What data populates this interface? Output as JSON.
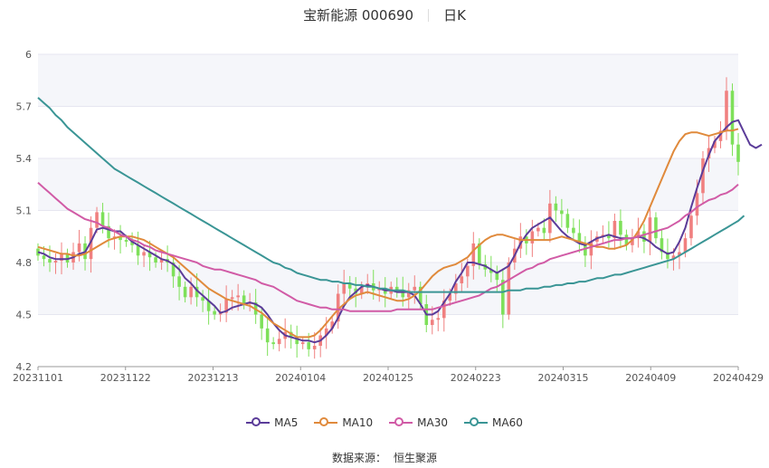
{
  "title": "宝新能源 000690",
  "period": "日K",
  "source_label": "数据来源：",
  "source_name": "恒生聚源",
  "colors": {
    "up": "#f08080",
    "down": "#7ee05a",
    "ma5": "#5b3c99",
    "ma10": "#e08a3c",
    "ma30": "#d15ba6",
    "ma60": "#3a9595",
    "grid": "#e6e6f0",
    "band": "#f5f6fa"
  },
  "chart_data": {
    "type": "candlestick",
    "ylim": [
      4.2,
      6.0
    ],
    "yticks": [
      "6",
      "5.7",
      "5.4",
      "5.1",
      "4.8",
      "4.5",
      "4.2"
    ],
    "xticks": [
      "20231101",
      "20231122",
      "20231213",
      "20240104",
      "20240125",
      "20240223",
      "20240315",
      "20240409",
      "20240429"
    ],
    "n_bars": 120,
    "close": [
      4.84,
      4.82,
      4.8,
      4.81,
      4.85,
      4.8,
      4.86,
      4.91,
      4.82,
      5.0,
      5.09,
      5.01,
      4.94,
      4.95,
      4.93,
      4.92,
      4.9,
      4.84,
      4.86,
      4.83,
      4.8,
      4.82,
      4.8,
      4.72,
      4.66,
      4.6,
      4.66,
      4.6,
      4.58,
      4.52,
      4.5,
      4.51,
      4.59,
      4.6,
      4.61,
      4.56,
      4.57,
      4.5,
      4.42,
      4.34,
      4.33,
      4.36,
      4.4,
      4.37,
      4.33,
      4.34,
      4.3,
      4.32,
      4.38,
      4.42,
      4.46,
      4.62,
      4.68,
      4.65,
      4.62,
      4.66,
      4.68,
      4.64,
      4.65,
      4.62,
      4.66,
      4.64,
      4.6,
      4.64,
      4.66,
      4.56,
      4.44,
      4.47,
      4.48,
      4.58,
      4.62,
      4.68,
      4.72,
      4.78,
      4.91,
      4.79,
      4.76,
      4.74,
      4.7,
      4.5,
      4.8,
      4.88,
      4.95,
      4.91,
      4.98,
      5.0,
      4.97,
      5.14,
      5.1,
      5.08,
      5.0,
      4.97,
      4.91,
      4.84,
      4.92,
      4.95,
      4.96,
      4.94,
      5.04,
      4.96,
      4.9,
      4.94,
      4.98,
      4.92,
      5.06,
      4.94,
      4.86,
      4.82,
      4.84,
      4.86,
      4.94,
      5.07,
      5.2,
      5.4,
      5.46,
      5.5,
      5.56,
      5.79,
      5.48,
      5.38,
      5.47,
      5.43,
      5.48,
      5.52,
      5.67
    ],
    "ma5": [
      4.86,
      4.85,
      4.83,
      4.82,
      4.82,
      4.82,
      4.83,
      4.85,
      4.86,
      4.92,
      4.99,
      5.0,
      4.99,
      4.98,
      4.98,
      4.95,
      4.92,
      4.9,
      4.88,
      4.86,
      4.84,
      4.82,
      4.81,
      4.79,
      4.76,
      4.71,
      4.68,
      4.64,
      4.61,
      4.58,
      4.55,
      4.51,
      4.52,
      4.54,
      4.55,
      4.56,
      4.57,
      4.56,
      4.54,
      4.5,
      4.45,
      4.41,
      4.38,
      4.37,
      4.36,
      4.35,
      4.35,
      4.34,
      4.35,
      4.38,
      4.42,
      4.48,
      4.55,
      4.6,
      4.63,
      4.66,
      4.67,
      4.66,
      4.65,
      4.64,
      4.64,
      4.63,
      4.63,
      4.63,
      4.61,
      4.56,
      4.5,
      4.5,
      4.52,
      4.57,
      4.62,
      4.69,
      4.74,
      4.8,
      4.8,
      4.79,
      4.78,
      4.76,
      4.74,
      4.76,
      4.78,
      4.84,
      4.91,
      4.96,
      5.0,
      5.02,
      5.04,
      5.06,
      5.02,
      4.98,
      4.95,
      4.93,
      4.91,
      4.9,
      4.92,
      4.94,
      4.95,
      4.96,
      4.95,
      4.94,
      4.94,
      4.94,
      4.95,
      4.94,
      4.92,
      4.89,
      4.87,
      4.85,
      4.86,
      4.92,
      5.0,
      5.12,
      5.23,
      5.33,
      5.42,
      5.5,
      5.54,
      5.58,
      5.61,
      5.62,
      5.55,
      5.48,
      5.46,
      5.48
    ],
    "ma10": [
      4.89,
      4.88,
      4.87,
      4.86,
      4.85,
      4.85,
      4.84,
      4.84,
      4.85,
      4.87,
      4.89,
      4.91,
      4.93,
      4.94,
      4.95,
      4.95,
      4.95,
      4.94,
      4.93,
      4.91,
      4.89,
      4.87,
      4.85,
      4.83,
      4.8,
      4.77,
      4.74,
      4.71,
      4.68,
      4.65,
      4.63,
      4.61,
      4.59,
      4.58,
      4.57,
      4.56,
      4.55,
      4.53,
      4.51,
      4.48,
      4.45,
      4.43,
      4.41,
      4.39,
      4.37,
      4.37,
      4.37,
      4.38,
      4.41,
      4.45,
      4.49,
      4.53,
      4.56,
      4.59,
      4.61,
      4.62,
      4.63,
      4.62,
      4.61,
      4.6,
      4.59,
      4.58,
      4.58,
      4.59,
      4.61,
      4.64,
      4.68,
      4.72,
      4.75,
      4.77,
      4.78,
      4.79,
      4.81,
      4.83,
      4.87,
      4.9,
      4.93,
      4.95,
      4.96,
      4.96,
      4.95,
      4.94,
      4.93,
      4.93,
      4.93,
      4.93,
      4.93,
      4.93,
      4.94,
      4.95,
      4.94,
      4.93,
      4.92,
      4.91,
      4.9,
      4.89,
      4.89,
      4.88,
      4.88,
      4.89,
      4.9,
      4.93,
      4.98,
      5.04,
      5.12,
      5.2,
      5.28,
      5.36,
      5.44,
      5.5,
      5.54,
      5.55,
      5.55,
      5.54,
      5.53,
      5.54,
      5.55,
      5.56,
      5.56,
      5.57
    ],
    "ma30": [
      5.26,
      5.23,
      5.2,
      5.17,
      5.14,
      5.11,
      5.09,
      5.07,
      5.05,
      5.04,
      5.03,
      5.01,
      5.0,
      4.98,
      4.96,
      4.95,
      4.93,
      4.92,
      4.9,
      4.89,
      4.87,
      4.86,
      4.85,
      4.84,
      4.83,
      4.82,
      4.81,
      4.8,
      4.78,
      4.77,
      4.76,
      4.76,
      4.75,
      4.74,
      4.73,
      4.72,
      4.71,
      4.7,
      4.68,
      4.67,
      4.66,
      4.64,
      4.62,
      4.6,
      4.58,
      4.57,
      4.56,
      4.55,
      4.54,
      4.54,
      4.53,
      4.53,
      4.53,
      4.52,
      4.52,
      4.52,
      4.52,
      4.52,
      4.52,
      4.52,
      4.52,
      4.53,
      4.53,
      4.53,
      4.53,
      4.53,
      4.53,
      4.53,
      4.54,
      4.55,
      4.56,
      4.57,
      4.58,
      4.59,
      4.6,
      4.61,
      4.63,
      4.65,
      4.66,
      4.68,
      4.7,
      4.72,
      4.74,
      4.76,
      4.77,
      4.79,
      4.8,
      4.82,
      4.83,
      4.84,
      4.85,
      4.86,
      4.87,
      4.88,
      4.89,
      4.9,
      4.91,
      4.92,
      4.93,
      4.93,
      4.94,
      4.94,
      4.95,
      4.96,
      4.97,
      4.98,
      4.99,
      5.0,
      5.02,
      5.04,
      5.07,
      5.09,
      5.12,
      5.14,
      5.16,
      5.17,
      5.19,
      5.2,
      5.22,
      5.25
    ],
    "ma60": [
      5.75,
      5.72,
      5.69,
      5.65,
      5.62,
      5.58,
      5.55,
      5.52,
      5.49,
      5.46,
      5.43,
      5.4,
      5.37,
      5.34,
      5.32,
      5.3,
      5.28,
      5.26,
      5.24,
      5.22,
      5.2,
      5.18,
      5.16,
      5.14,
      5.12,
      5.1,
      5.08,
      5.06,
      5.04,
      5.02,
      5.0,
      4.98,
      4.96,
      4.94,
      4.92,
      4.9,
      4.88,
      4.86,
      4.84,
      4.82,
      4.8,
      4.79,
      4.77,
      4.76,
      4.74,
      4.73,
      4.72,
      4.71,
      4.7,
      4.7,
      4.69,
      4.69,
      4.68,
      4.68,
      4.67,
      4.67,
      4.66,
      4.66,
      4.65,
      4.65,
      4.64,
      4.64,
      4.64,
      4.63,
      4.63,
      4.63,
      4.63,
      4.63,
      4.63,
      4.63,
      4.63,
      4.63,
      4.63,
      4.63,
      4.63,
      4.63,
      4.63,
      4.63,
      4.63,
      4.63,
      4.64,
      4.64,
      4.64,
      4.65,
      4.65,
      4.65,
      4.66,
      4.66,
      4.67,
      4.67,
      4.68,
      4.68,
      4.69,
      4.69,
      4.7,
      4.71,
      4.71,
      4.72,
      4.73,
      4.73,
      4.74,
      4.75,
      4.76,
      4.77,
      4.78,
      4.79,
      4.8,
      4.81,
      4.82,
      4.84,
      4.86,
      4.88,
      4.9,
      4.92,
      4.94,
      4.96,
      4.98,
      5.0,
      5.02,
      5.04,
      5.07
    ],
    "legend": [
      {
        "name": "MA5",
        "key": "ma5"
      },
      {
        "name": "MA10",
        "key": "ma10"
      },
      {
        "name": "MA30",
        "key": "ma30"
      },
      {
        "name": "MA60",
        "key": "ma60"
      }
    ]
  }
}
